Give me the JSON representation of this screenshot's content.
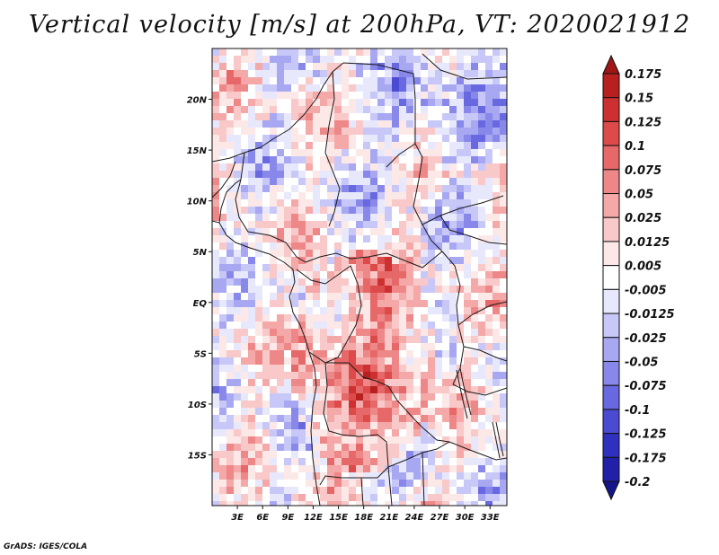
{
  "title": "Vertical velocity [m/s] at 200hPa, VT: 2020021912",
  "credit": "GrADS: IGES/COLA",
  "map": {
    "lat_labels": [
      "20N",
      "15N",
      "10N",
      "5N",
      "EQ",
      "5S",
      "10S",
      "15S"
    ],
    "lon_labels": [
      "3E",
      "6E",
      "9E",
      "12E",
      "15E",
      "18E",
      "21E",
      "24E",
      "27E",
      "30E",
      "33E"
    ],
    "lat_range": [
      -20,
      25
    ],
    "lon_range": [
      0,
      35
    ]
  },
  "colorbar": {
    "labels": [
      "0.175",
      "0.15",
      "0.125",
      "0.1",
      "0.075",
      "0.05",
      "0.025",
      "0.0125",
      "0.005",
      "-0.005",
      "-0.0125",
      "-0.025",
      "-0.05",
      "-0.075",
      "-0.1",
      "-0.125",
      "-0.175",
      "-0.2"
    ],
    "colors": [
      "#a01515",
      "#b82020",
      "#cc3030",
      "#dd4a4a",
      "#e66868",
      "#ee8888",
      "#f4a8a8",
      "#f9c8c8",
      "#fde8e8",
      "#ffffff",
      "#e8e8fd",
      "#c8c8f8",
      "#a8a8f2",
      "#8888ea",
      "#6868e0",
      "#4a4ad2",
      "#3030c0",
      "#2020a8",
      "#15158a"
    ]
  }
}
